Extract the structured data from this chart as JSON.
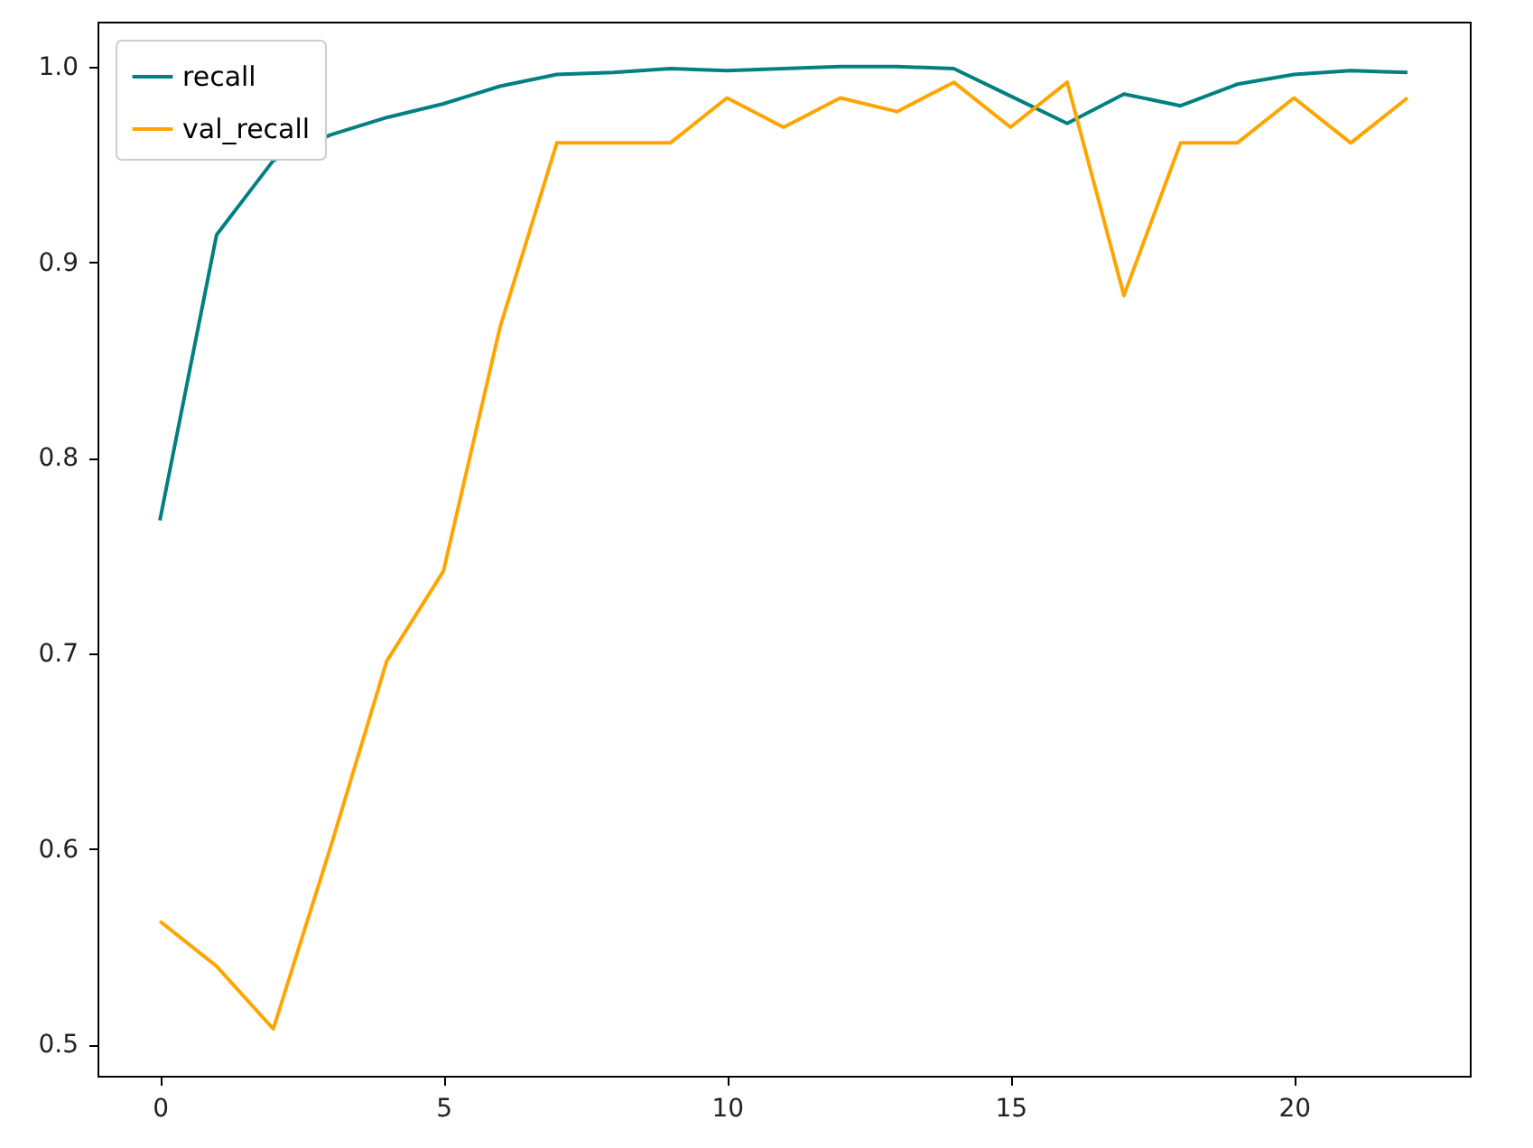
{
  "chart_data": {
    "type": "line",
    "x": [
      0,
      1,
      2,
      3,
      4,
      5,
      6,
      7,
      8,
      9,
      10,
      11,
      12,
      13,
      14,
      15,
      16,
      17,
      18,
      19,
      20,
      21,
      22
    ],
    "series": [
      {
        "name": "recall",
        "color": "#008080",
        "values": [
          0.768,
          0.914,
          0.952,
          0.965,
          0.974,
          0.981,
          0.99,
          0.996,
          0.997,
          0.999,
          0.998,
          0.999,
          1.0,
          1.0,
          0.999,
          0.985,
          0.971,
          0.986,
          0.98,
          0.991,
          0.996,
          0.998,
          0.997
        ]
      },
      {
        "name": "val_recall",
        "color": "#ffa500",
        "values": [
          0.563,
          0.54,
          0.508,
          0.6,
          0.696,
          0.742,
          0.867,
          0.961,
          0.961,
          0.961,
          0.984,
          0.969,
          0.984,
          0.977,
          0.992,
          0.969,
          0.992,
          0.883,
          0.961,
          0.961,
          0.984,
          0.961,
          0.984
        ]
      }
    ],
    "xlim": [
      -1.1,
      23.1
    ],
    "xticks": [
      0,
      5,
      10,
      15,
      20
    ],
    "ylim": [
      0.484,
      1.023
    ],
    "yticks": [
      0.5,
      0.6,
      0.7,
      0.8,
      0.9,
      {
        "value": 1,
        "label": "1.0"
      }
    ],
    "legend": "top left",
    "grid": false
  }
}
